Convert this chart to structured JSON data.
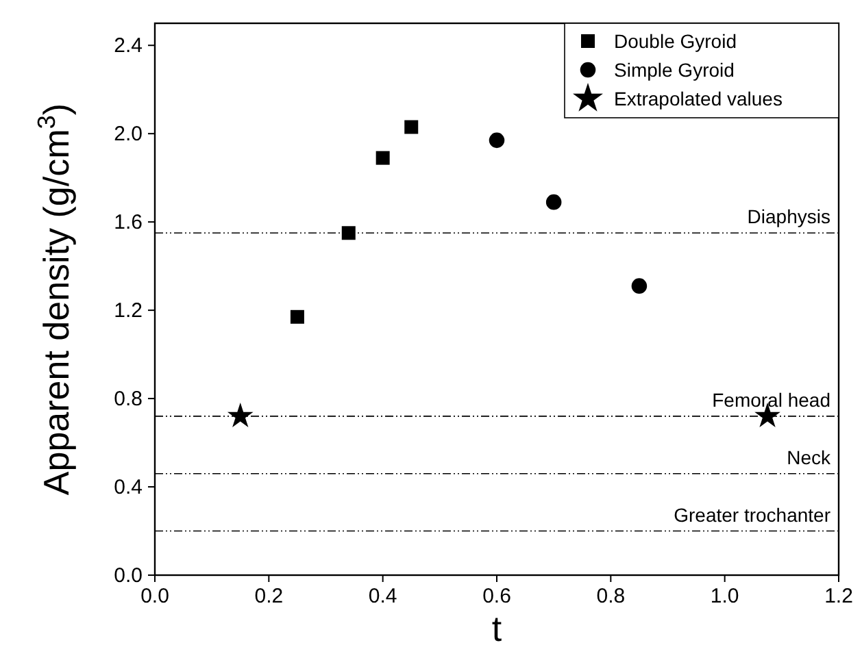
{
  "chart_data": {
    "type": "scatter",
    "xlabel": "t",
    "ylabel": "Apparent density (g/cm$^{3}$)",
    "xlim": [
      0,
      1.2
    ],
    "ylim": [
      0,
      2.5
    ],
    "xticks": [
      {
        "value": 0,
        "label": "0.0"
      },
      {
        "value": 0.2,
        "label": "0.2"
      },
      {
        "value": 0.4,
        "label": "0.4"
      },
      {
        "value": 0.6,
        "label": "0.6"
      },
      {
        "value": 0.8,
        "label": "0.8"
      },
      {
        "value": 1,
        "label": "1.0"
      },
      {
        "value": 1.2,
        "label": "1.2"
      }
    ],
    "yticks": [
      {
        "value": 0,
        "label": "0.0"
      },
      {
        "value": 0.4,
        "label": "0.4"
      },
      {
        "value": 0.8,
        "label": "0.8"
      },
      {
        "value": 1.2,
        "label": "1.2"
      },
      {
        "value": 1.6,
        "label": "1.6"
      },
      {
        "value": 2,
        "label": "2.0"
      },
      {
        "value": 2.4,
        "label": "2.4"
      }
    ],
    "legend": "top right",
    "grid": false,
    "series": [
      {
        "name": "Double Gyroid",
        "color": "#000000",
        "marker": "square",
        "x": [
          0.25,
          0.34,
          0.4,
          0.45
        ],
        "values": [
          1.17,
          1.55,
          1.89,
          2.03
        ]
      },
      {
        "name": "Simple Gyroid",
        "color": "#000000",
        "marker": "circle",
        "x": [
          0.6,
          0.7,
          0.85
        ],
        "values": [
          1.97,
          1.69,
          1.31
        ]
      },
      {
        "name": "Extrapolated values",
        "color": "#000000",
        "marker": "star",
        "x": [
          0.15,
          1.075
        ],
        "values": [
          0.72,
          0.72
        ]
      }
    ],
    "ref_lines": [
      {
        "axis": "y",
        "value": 1.55,
        "label": "Diaphysis"
      },
      {
        "axis": "y",
        "value": 0.72,
        "label": "Femoral head"
      },
      {
        "axis": "y",
        "value": 0.46,
        "label": "Neck"
      },
      {
        "axis": "y",
        "value": 0.2,
        "label": "Greater trochanter"
      }
    ]
  }
}
